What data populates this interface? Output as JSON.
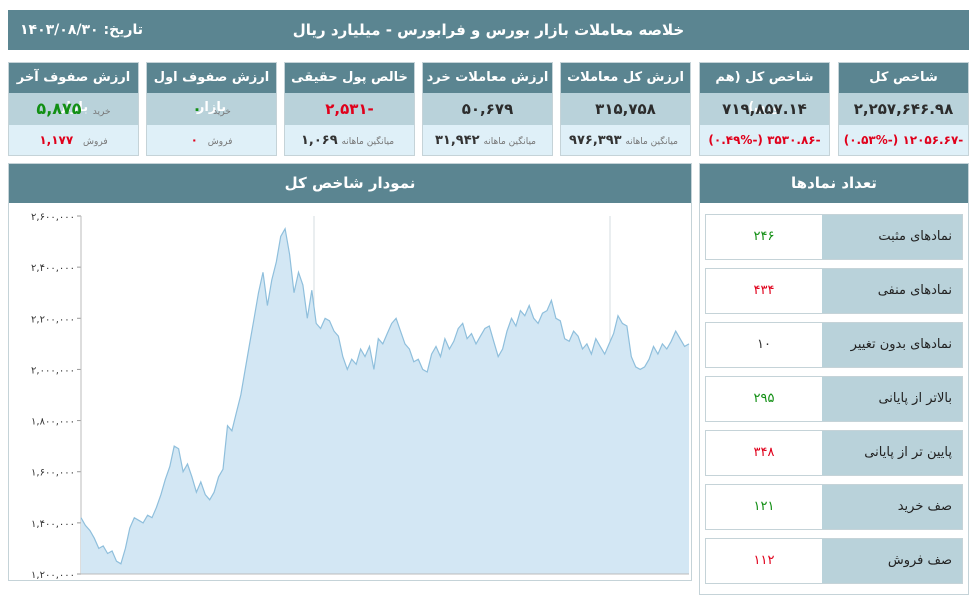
{
  "header": {
    "title": "خلاصه معاملات بازار بورس و فرابورس - میلیارد ریال",
    "date": "تاریخ: ۱۴۰۳/۰۸/۳۰"
  },
  "cards": [
    {
      "title": "شاخص کل",
      "main": "۲,۲۵۷,۶۴۶.۹۸",
      "sub": "-۱۲۰۵۶.۶۷ (-۰.۵۳%)"
    },
    {
      "title": "شاخص کل (هم وزن)",
      "main": "۷۱۹,۸۵۷.۱۴",
      "sub": "-۳۵۳۰.۸۶ (-۰.۴۹%)"
    },
    {
      "title": "ارزش کل معاملات",
      "main": "۳۱۵,۷۵۸",
      "sub_label": "میانگین ماهانه",
      "sub_value": "۹۷۶,۳۹۳"
    },
    {
      "title": "ارزش معاملات خرد",
      "main": "۵۰,۶۷۹",
      "sub_label": "میانگین ماهانه",
      "sub_value": "۳۱,۹۴۲"
    },
    {
      "title": "خالص پول حقیقی",
      "main": "-۲,۵۳۱",
      "sub_label": "میانگین ماهانه",
      "sub_value": "۱,۰۶۹"
    },
    {
      "title": "ارزش صفوف اول بازار",
      "buy_label": "خرید",
      "buy_value": "۰",
      "sell_label": "فروش",
      "sell_value": "۰"
    },
    {
      "title": "ارزش صفوف آخر بازار",
      "buy_label": "خرید",
      "buy_value": "۵,۸۷۵",
      "sell_label": "فروش",
      "sell_value": "۱,۱۷۷"
    }
  ],
  "chart_panel": {
    "title": "نمودار شاخص کل"
  },
  "symbols_panel": {
    "title": "تعداد نمادها",
    "rows": [
      {
        "label": "نمادهای مثبت",
        "value": "۲۴۶",
        "color": "#128f14"
      },
      {
        "label": "نمادهای منفی",
        "value": "۴۳۴",
        "color": "#e0001b"
      },
      {
        "label": "نمادهای بدون تغییر",
        "value": "۱۰",
        "color": "#333333"
      },
      {
        "label": "بالاتر از پایانی",
        "value": "۲۹۵",
        "color": "#128f14"
      },
      {
        "label": "پایین تر از پایانی",
        "value": "۳۴۸",
        "color": "#e0001b"
      },
      {
        "label": "صف خرید",
        "value": "۱۲۱",
        "color": "#128f14"
      },
      {
        "label": "صف فروش",
        "value": "۱۱۲",
        "color": "#e0001b"
      }
    ]
  },
  "chart_data": {
    "type": "area",
    "ylim": [
      1200000,
      2600000
    ],
    "yticks": [
      "۱,۲۰۰,۰۰۰",
      "۱,۴۰۰,۰۰۰",
      "۱,۶۰۰,۰۰۰",
      "۱,۸۰۰,۰۰۰",
      "۲,۰۰۰,۰۰۰",
      "۲,۲۰۰,۰۰۰",
      "۲,۴۰۰,۰۰۰",
      "۲,۶۰۰,۰۰۰"
    ],
    "ytick_values": [
      1200000,
      1400000,
      1600000,
      1800000,
      2000000,
      2200000,
      2400000,
      2600000
    ],
    "grid": true,
    "values": [
      1420000,
      1390000,
      1370000,
      1340000,
      1300000,
      1310000,
      1280000,
      1290000,
      1250000,
      1240000,
      1300000,
      1380000,
      1420000,
      1410000,
      1400000,
      1430000,
      1420000,
      1460000,
      1510000,
      1570000,
      1620000,
      1700000,
      1690000,
      1600000,
      1630000,
      1580000,
      1520000,
      1560000,
      1510000,
      1490000,
      1520000,
      1580000,
      1610000,
      1780000,
      1760000,
      1830000,
      1900000,
      2000000,
      2100000,
      2200000,
      2300000,
      2380000,
      2250000,
      2350000,
      2420000,
      2520000,
      2550000,
      2450000,
      2300000,
      2380000,
      2330000,
      2200000,
      2310000,
      2180000,
      2160000,
      2200000,
      2190000,
      2150000,
      2130000,
      2050000,
      2000000,
      2040000,
      2020000,
      2080000,
      2050000,
      2090000,
      2000000,
      2120000,
      2100000,
      2140000,
      2180000,
      2200000,
      2150000,
      2100000,
      2080000,
      2030000,
      2040000,
      2000000,
      1990000,
      2060000,
      2090000,
      2050000,
      2120000,
      2080000,
      2110000,
      2160000,
      2180000,
      2120000,
      2140000,
      2100000,
      2130000,
      2160000,
      2170000,
      2110000,
      2050000,
      2080000,
      2150000,
      2200000,
      2170000,
      2230000,
      2210000,
      2250000,
      2200000,
      2180000,
      2220000,
      2230000,
      2270000,
      2200000,
      2190000,
      2120000,
      2110000,
      2150000,
      2130000,
      2080000,
      2100000,
      2060000,
      2120000,
      2090000,
      2060000,
      2100000,
      2140000,
      2210000,
      2180000,
      2170000,
      2050000,
      2010000,
      2000000,
      2010000,
      2040000,
      2090000,
      2060000,
      2100000,
      2080000,
      2110000,
      2150000,
      2120000,
      2090000,
      2100000
    ]
  }
}
